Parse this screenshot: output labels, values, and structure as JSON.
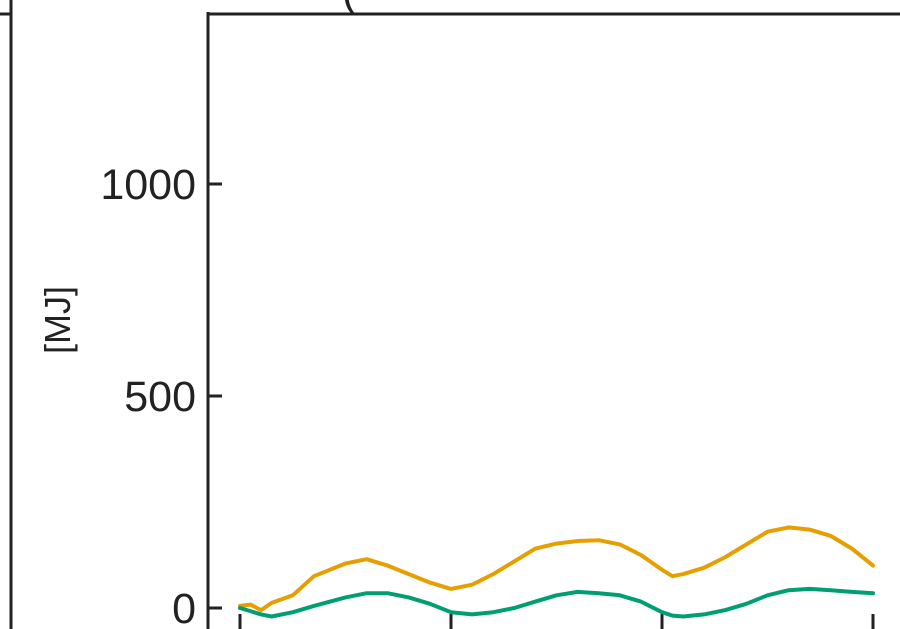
{
  "chart_data": {
    "type": "line",
    "title": "(",
    "xlabel": "",
    "ylabel": "[MJ]",
    "ylim": [
      0,
      1400
    ],
    "yticks": [
      0,
      500,
      1000
    ],
    "ytick_labels": [
      "0",
      "500",
      "1000"
    ],
    "xlim": [
      0,
      3
    ],
    "xticks": [
      0,
      1,
      2,
      3
    ],
    "grid": false,
    "series": [
      {
        "color": "#E69F00",
        "x": [
          0,
          0.05,
          0.1,
          0.15,
          0.25,
          0.35,
          0.5,
          0.6,
          0.7,
          0.8,
          0.9,
          1.0,
          1.05,
          1.1,
          1.2,
          1.3,
          1.4,
          1.5,
          1.6,
          1.7,
          1.8,
          1.9,
          2.0,
          2.05,
          2.1,
          2.2,
          2.3,
          2.4,
          2.5,
          2.6,
          2.7,
          2.8,
          2.9,
          3.0
        ],
        "values": [
          5,
          8,
          -5,
          12,
          30,
          75,
          105,
          115,
          100,
          80,
          60,
          45,
          50,
          55,
          80,
          110,
          140,
          152,
          158,
          160,
          150,
          125,
          90,
          75,
          80,
          95,
          120,
          150,
          180,
          190,
          185,
          170,
          140,
          100
        ]
      },
      {
        "color": "#009E73",
        "x": [
          0,
          0.1,
          0.15,
          0.25,
          0.35,
          0.5,
          0.6,
          0.7,
          0.8,
          0.9,
          1.0,
          1.1,
          1.2,
          1.3,
          1.4,
          1.5,
          1.6,
          1.7,
          1.8,
          1.9,
          2.0,
          2.05,
          2.1,
          2.2,
          2.3,
          2.4,
          2.5,
          2.6,
          2.7,
          2.8,
          2.9,
          3.0
        ],
        "values": [
          0,
          -15,
          -20,
          -10,
          5,
          25,
          35,
          35,
          25,
          10,
          -10,
          -15,
          -10,
          0,
          15,
          30,
          38,
          35,
          30,
          15,
          -10,
          -18,
          -20,
          -15,
          -5,
          10,
          30,
          42,
          45,
          42,
          38,
          35
        ]
      }
    ]
  }
}
